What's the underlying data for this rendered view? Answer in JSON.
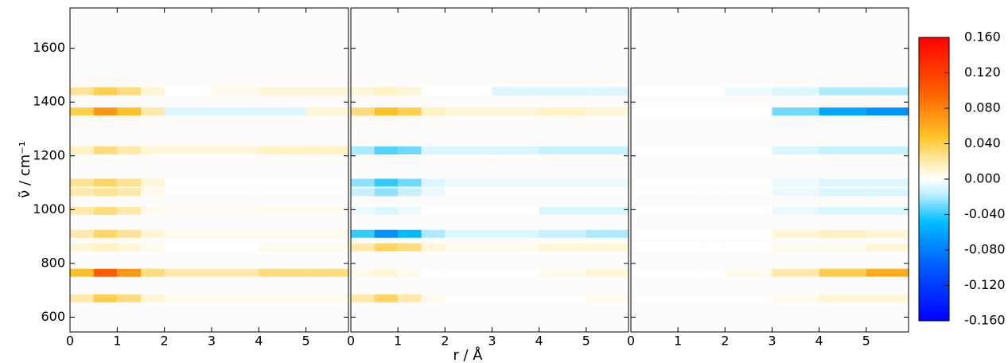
{
  "chart_data": [
    {
      "type": "heatmap",
      "ylabel": "ν̃ / cm⁻¹",
      "x_bins": [
        0,
        0.5,
        1,
        1.5,
        2,
        3,
        4,
        5,
        5.9
      ],
      "y": [
        670,
        765,
        860,
        910,
        995,
        1065,
        1100,
        1220,
        1365,
        1440
      ],
      "z": [
        [
          0.02,
          0.04,
          0.03,
          0.01,
          0.005,
          0.005,
          0.005,
          0.005
        ],
        [
          0.05,
          0.1,
          0.07,
          0.03,
          0.02,
          0.02,
          0.03,
          0.03
        ],
        [
          0.01,
          0.015,
          0.01,
          0.005,
          0,
          0,
          0.005,
          0.005
        ],
        [
          0.02,
          0.035,
          0.025,
          0.01,
          0.005,
          0.005,
          0.005,
          0.005
        ],
        [
          0.02,
          0.03,
          0.02,
          0.005,
          0.003,
          0.003,
          0.005,
          0.005
        ],
        [
          0.02,
          0.025,
          0.02,
          0.005,
          0,
          0,
          0,
          0
        ],
        [
          0.025,
          0.035,
          0.025,
          0.01,
          0,
          0,
          0,
          0
        ],
        [
          0.015,
          0.03,
          0.02,
          0.01,
          0.01,
          0.01,
          0.015,
          0.015
        ],
        [
          0.04,
          0.07,
          0.05,
          0.02,
          -0.01,
          -0.01,
          -0.01,
          0.01
        ],
        [
          0.025,
          0.04,
          0.03,
          0.01,
          0,
          0.005,
          0.01,
          0.01
        ]
      ],
      "xlim": [
        0,
        5.9
      ],
      "xticks": [
        0,
        1,
        2,
        3,
        4,
        5
      ],
      "ylim": [
        545,
        1750
      ],
      "yticks": [
        600,
        800,
        1000,
        1200,
        1400,
        1600
      ]
    },
    {
      "type": "heatmap",
      "xlabel": "r / Å",
      "x_bins": [
        0,
        0.5,
        1,
        1.5,
        2,
        3,
        4,
        5,
        5.9
      ],
      "y": [
        670,
        765,
        860,
        910,
        995,
        1065,
        1100,
        1220,
        1365,
        1440
      ],
      "z": [
        [
          0.02,
          0.035,
          0.02,
          0.005,
          0,
          0,
          0,
          0.005
        ],
        [
          0.005,
          0.01,
          0.005,
          0,
          0,
          0,
          0.005,
          0.01
        ],
        [
          0.02,
          0.035,
          0.03,
          0.01,
          0.005,
          0.005,
          0.01,
          0.01
        ],
        [
          -0.04,
          -0.07,
          -0.05,
          -0.02,
          -0.01,
          -0.01,
          -0.015,
          -0.02
        ],
        [
          -0.005,
          -0.01,
          -0.005,
          0,
          0,
          0,
          -0.01,
          -0.01
        ],
        [
          -0.015,
          -0.025,
          -0.015,
          -0.005,
          0,
          0,
          0,
          0
        ],
        [
          -0.025,
          -0.04,
          -0.03,
          -0.01,
          -0.005,
          -0.005,
          -0.005,
          -0.005
        ],
        [
          -0.02,
          -0.035,
          -0.03,
          -0.01,
          -0.01,
          -0.01,
          -0.015,
          -0.015
        ],
        [
          0.03,
          0.05,
          0.04,
          0.015,
          0.01,
          0.01,
          0.015,
          0.01
        ],
        [
          0.01,
          0.015,
          0.01,
          0,
          0,
          -0.01,
          -0.01,
          -0.01
        ]
      ],
      "xlim": [
        0,
        5.9
      ],
      "xticks": [
        0,
        1,
        2,
        3,
        4,
        5
      ],
      "ylim": [
        545,
        1750
      ],
      "yticks": [
        600,
        800,
        1000,
        1200,
        1400,
        1600
      ]
    },
    {
      "type": "heatmap",
      "x_bins": [
        0,
        0.5,
        1,
        1.5,
        2,
        3,
        4,
        5,
        5.9
      ],
      "y": [
        670,
        765,
        860,
        910,
        995,
        1065,
        1100,
        1220,
        1365,
        1440
      ],
      "z": [
        [
          0,
          0,
          0,
          0,
          0,
          0.005,
          0.01,
          0.01
        ],
        [
          0,
          0,
          0,
          0,
          0.005,
          0.02,
          0.04,
          0.06
        ],
        [
          0,
          0,
          0,
          0,
          0,
          0.005,
          0.005,
          0.01
        ],
        [
          0,
          0,
          0,
          0,
          0,
          0.01,
          0.015,
          0.01
        ],
        [
          0,
          0,
          0,
          0,
          0,
          -0.005,
          -0.01,
          -0.01
        ],
        [
          0,
          0,
          0,
          0,
          0,
          -0.005,
          -0.01,
          -0.01
        ],
        [
          0,
          0,
          0,
          0,
          0,
          -0.005,
          -0.01,
          -0.01
        ],
        [
          0,
          0,
          0,
          0,
          0,
          -0.01,
          -0.015,
          -0.015
        ],
        [
          0,
          0,
          0,
          0,
          0,
          -0.03,
          -0.06,
          -0.07
        ],
        [
          0,
          0,
          0,
          0,
          -0.005,
          -0.01,
          -0.02,
          -0.02
        ]
      ],
      "xlim": [
        0,
        5.9
      ],
      "xticks": [
        0,
        1,
        2,
        3,
        4,
        5
      ],
      "ylim": [
        545,
        1750
      ],
      "yticks": [
        600,
        800,
        1000,
        1200,
        1400,
        1600
      ],
      "zlim": [
        -0.16,
        0.16
      ],
      "zticks": [
        {
          "value": 0.16,
          "label": "0.160"
        },
        {
          "value": 0.12,
          "label": "0.120"
        },
        {
          "value": 0.08,
          "label": "0.080"
        },
        {
          "value": 0.04,
          "label": "0.040"
        },
        {
          "value": 0,
          "label": "0.000"
        },
        {
          "value": -0.04,
          "label": "-0.040"
        },
        {
          "value": -0.08,
          "label": "-0.080"
        },
        {
          "value": -0.12,
          "label": "-0.120"
        },
        {
          "value": -0.16,
          "label": "-0.160"
        }
      ]
    }
  ]
}
